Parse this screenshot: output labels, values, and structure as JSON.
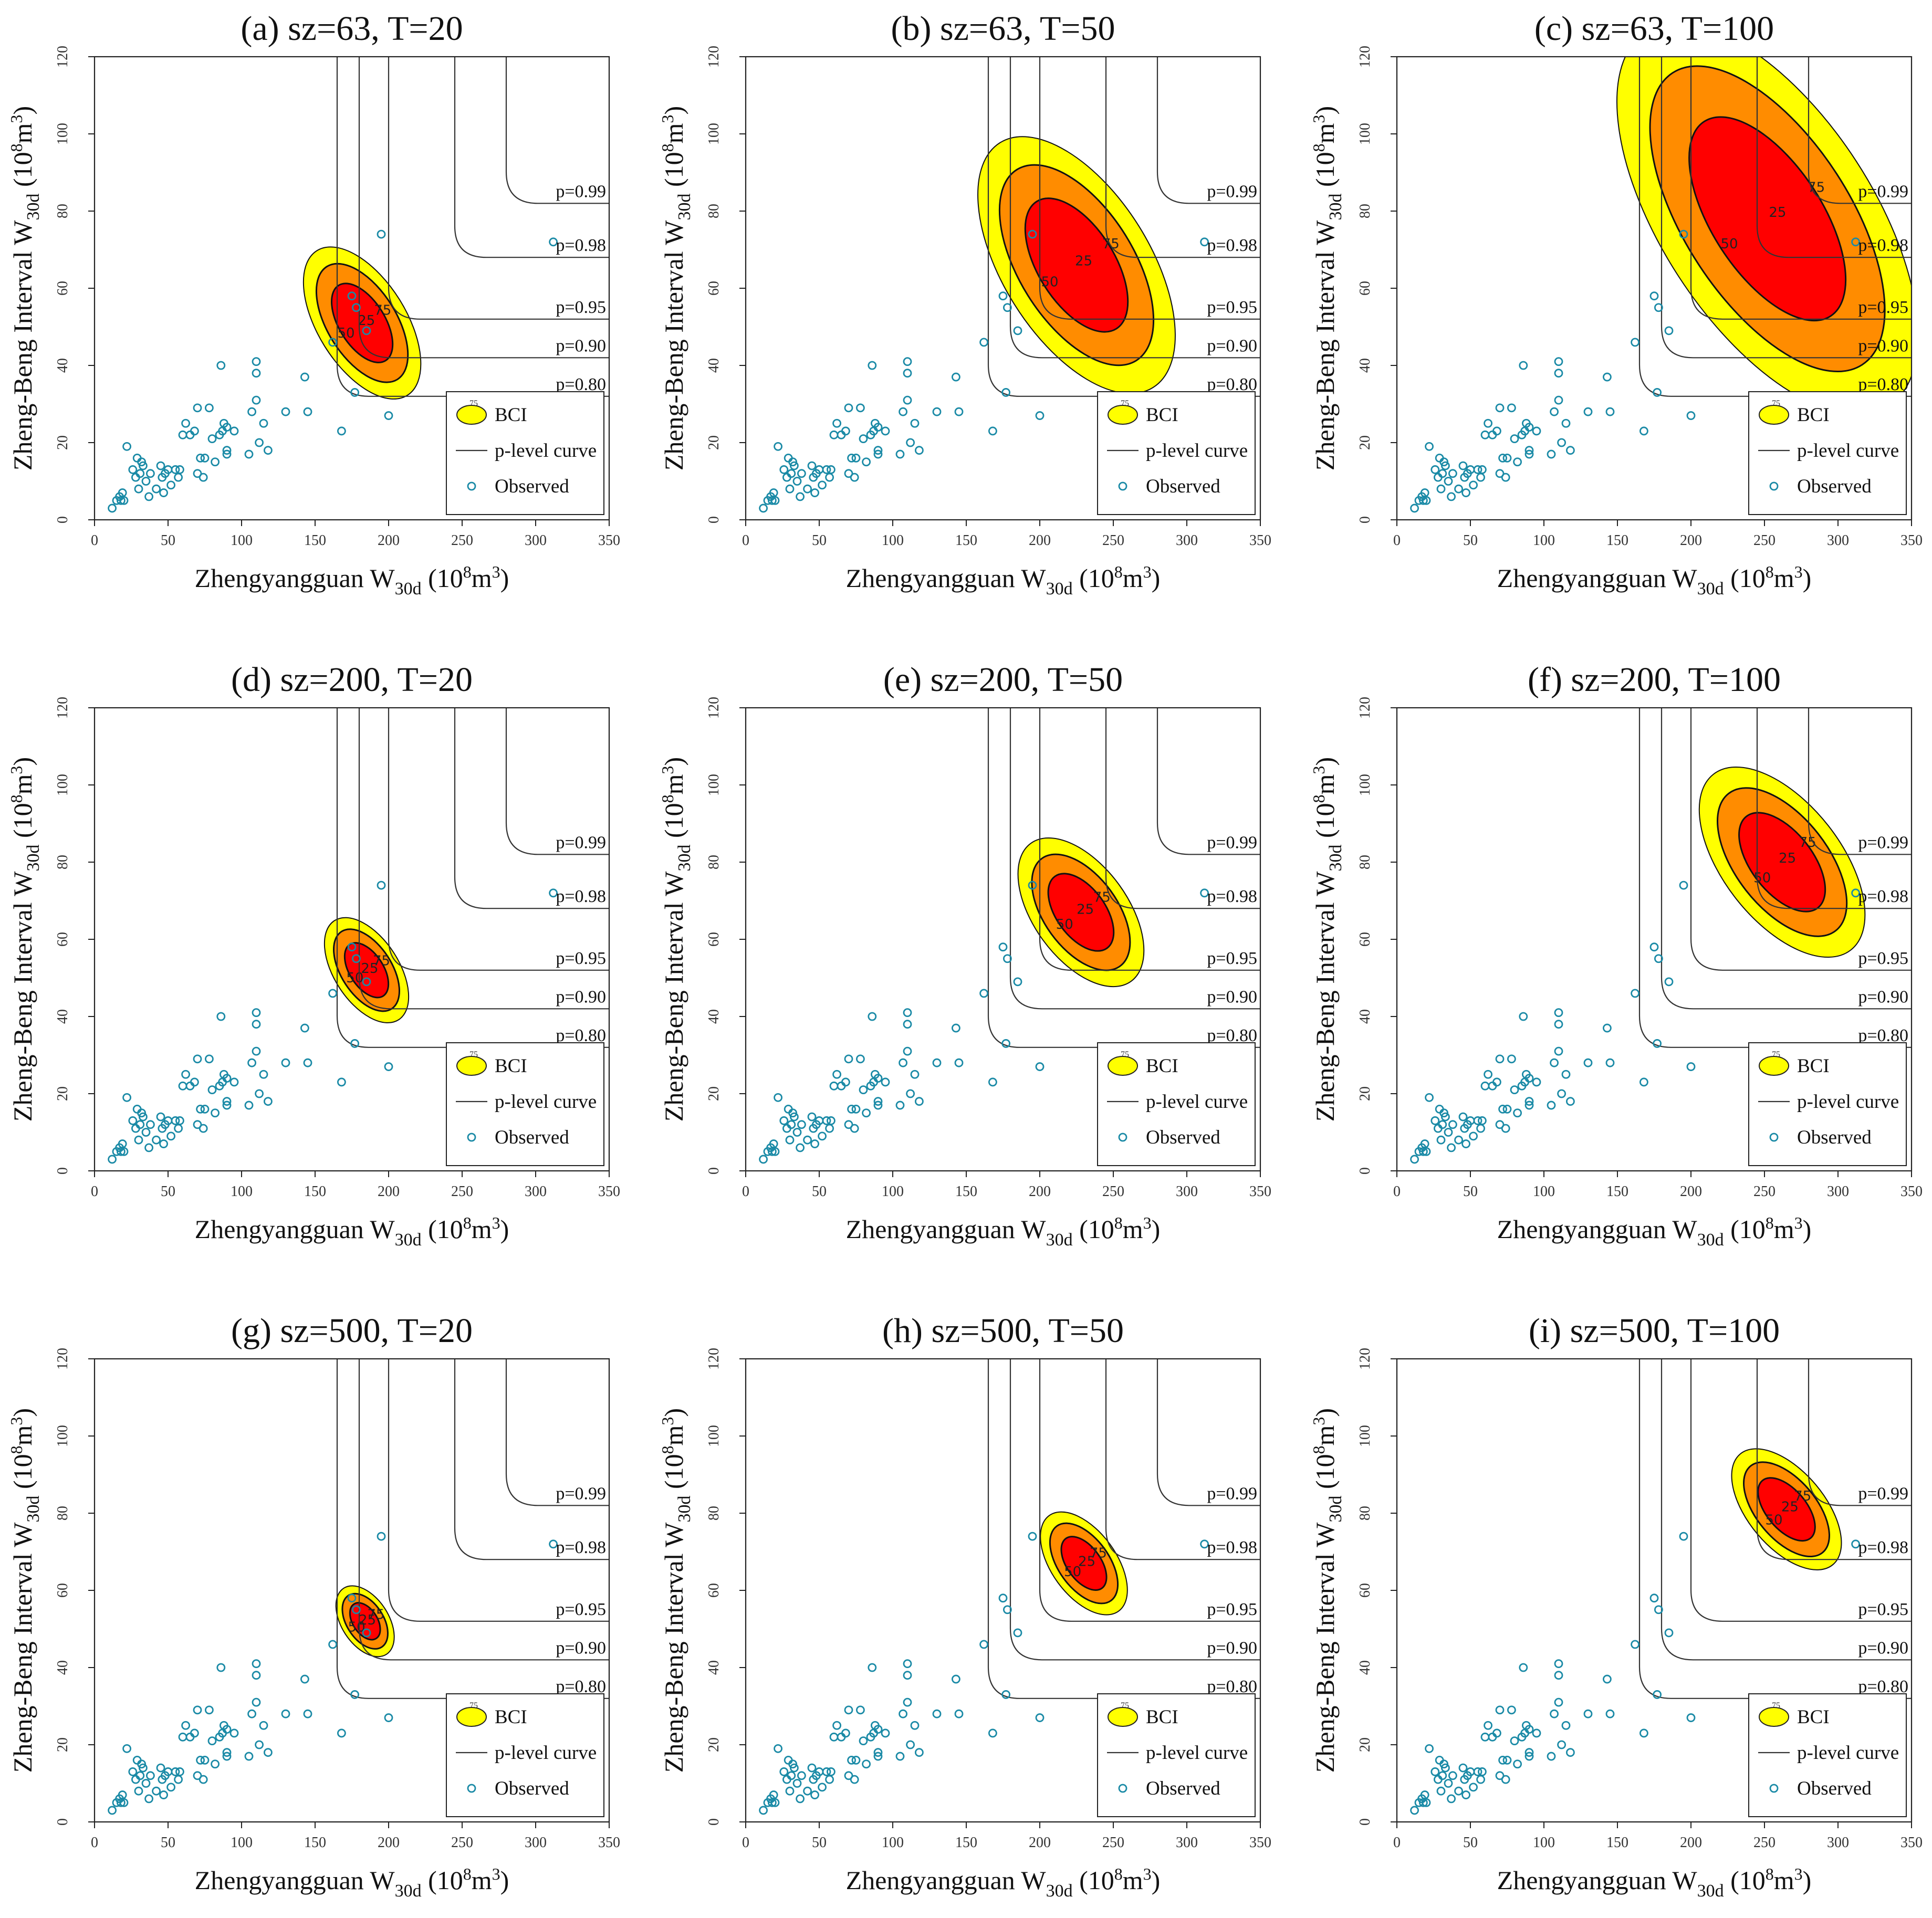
{
  "figure": {
    "xlabel": {
      "main": "Zhengyangguan W",
      "sub": "30d",
      "unit_open": " (10",
      "unit_sup": "8",
      "unit_close": "m",
      "unit_sup2": "3",
      "unit_end": ")"
    },
    "ylabel": {
      "main": "Zheng-Beng Interval W",
      "sub": "30d",
      "unit_open": " (10",
      "unit_sup": "8",
      "unit_close": "m",
      "unit_sup2": "3",
      "unit_end": ")"
    },
    "legend": {
      "bci": "BCI",
      "bci_marker": "75",
      "curve": "p-level curve",
      "observed": "Observed"
    },
    "colors": {
      "outer": "#ffff00",
      "middle": "#ff8c00",
      "inner": "#ff0000",
      "points": "#1a8aa6",
      "curve": "#333333"
    }
  },
  "chart_data": {
    "type": "scatter",
    "x_ticks": [
      0,
      50,
      100,
      150,
      200,
      250,
      300,
      350
    ],
    "y_ticks": [
      0,
      20,
      40,
      60,
      80,
      100,
      120
    ],
    "xlim": [
      0,
      350
    ],
    "ylim": [
      0,
      120
    ],
    "observed": [
      [
        12,
        3
      ],
      [
        15,
        5
      ],
      [
        17,
        6
      ],
      [
        18,
        5
      ],
      [
        19,
        7
      ],
      [
        20,
        5
      ],
      [
        22,
        19
      ],
      [
        26,
        13
      ],
      [
        28,
        11
      ],
      [
        29,
        16
      ],
      [
        30,
        8
      ],
      [
        31,
        12
      ],
      [
        32,
        15
      ],
      [
        33,
        14
      ],
      [
        35,
        10
      ],
      [
        37,
        6
      ],
      [
        38,
        12
      ],
      [
        42,
        8
      ],
      [
        45,
        14
      ],
      [
        46,
        11
      ],
      [
        47,
        7
      ],
      [
        48,
        12
      ],
      [
        50,
        13
      ],
      [
        52,
        9
      ],
      [
        55,
        13
      ],
      [
        57,
        11
      ],
      [
        58,
        13
      ],
      [
        60,
        22
      ],
      [
        62,
        25
      ],
      [
        65,
        22
      ],
      [
        68,
        23
      ],
      [
        70,
        12
      ],
      [
        70,
        29
      ],
      [
        72,
        16
      ],
      [
        74,
        11
      ],
      [
        75,
        16
      ],
      [
        78,
        29
      ],
      [
        80,
        21
      ],
      [
        82,
        15
      ],
      [
        85,
        22
      ],
      [
        86,
        40
      ],
      [
        87,
        23
      ],
      [
        88,
        25
      ],
      [
        90,
        17
      ],
      [
        90,
        18
      ],
      [
        90,
        24
      ],
      [
        95,
        23
      ],
      [
        105,
        17
      ],
      [
        107,
        28
      ],
      [
        110,
        41
      ],
      [
        110,
        31
      ],
      [
        110,
        38
      ],
      [
        112,
        20
      ],
      [
        115,
        25
      ],
      [
        118,
        18
      ],
      [
        130,
        28
      ],
      [
        143,
        37
      ],
      [
        145,
        28
      ],
      [
        162,
        46
      ],
      [
        168,
        23
      ],
      [
        175,
        58
      ],
      [
        177,
        33
      ],
      [
        178,
        55
      ],
      [
        185,
        49
      ],
      [
        195,
        74
      ],
      [
        200,
        27
      ],
      [
        312,
        72
      ]
    ],
    "p_curves": [
      {
        "label": "p=0.80",
        "vx": 165,
        "hy": 32
      },
      {
        "label": "p=0.90",
        "vx": 180,
        "hy": 42
      },
      {
        "label": "p=0.95",
        "vx": 200,
        "hy": 52
      },
      {
        "label": "p=0.98",
        "vx": 245,
        "hy": 68
      },
      {
        "label": "p=0.99",
        "vx": 280,
        "hy": 82
      }
    ],
    "contour_levels": [
      "25",
      "50",
      "75"
    ],
    "panels": [
      {
        "title": "(a) sz=63, T=20",
        "bci": {
          "cx": 182,
          "cy": 51,
          "rx": 30,
          "ry": 6.5,
          "angle": 32
        }
      },
      {
        "title": "(b) sz=63, T=50",
        "bci": {
          "cx": 225,
          "cy": 66,
          "rx": 50,
          "ry": 11,
          "angle": 32
        }
      },
      {
        "title": "(c) sz=63, T=100",
        "bci": {
          "cx": 252,
          "cy": 78,
          "rx": 72,
          "ry": 17,
          "angle": 33
        }
      },
      {
        "title": "(d) sz=200, T=20",
        "bci": {
          "cx": 185,
          "cy": 52,
          "rx": 22,
          "ry": 4.5,
          "angle": 33
        }
      },
      {
        "title": "(e) sz=200, T=50",
        "bci": {
          "cx": 228,
          "cy": 67,
          "rx": 32,
          "ry": 6.5,
          "angle": 36
        }
      },
      {
        "title": "(f) sz=200, T=100",
        "bci": {
          "cx": 262,
          "cy": 80,
          "rx": 40,
          "ry": 8.5,
          "angle": 38
        }
      },
      {
        "title": "(g) sz=500, T=20",
        "bci": {
          "cx": 184,
          "cy": 52,
          "rx": 16,
          "ry": 3,
          "angle": 33
        }
      },
      {
        "title": "(h) sz=500, T=50",
        "bci": {
          "cx": 230,
          "cy": 67,
          "rx": 22,
          "ry": 4.5,
          "angle": 36
        }
      },
      {
        "title": "(i) sz=500, T=100",
        "bci": {
          "cx": 265,
          "cy": 81,
          "rx": 26,
          "ry": 5.5,
          "angle": 40
        }
      }
    ]
  }
}
